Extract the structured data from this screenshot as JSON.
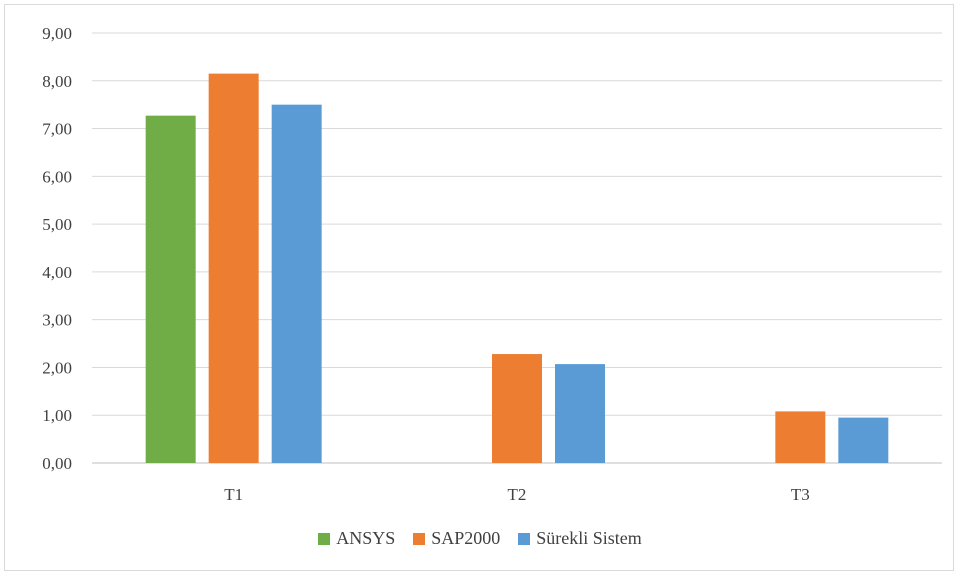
{
  "chart_data": {
    "type": "bar",
    "categories": [
      "T1",
      "T2",
      "T3"
    ],
    "series": [
      {
        "name": "ANSYS",
        "color": "#70ad47",
        "values": [
          7.27,
          null,
          null
        ]
      },
      {
        "name": "SAP2000",
        "color": "#ed7d31",
        "values": [
          8.15,
          2.28,
          1.08
        ]
      },
      {
        "name": "Sürekli Sistem",
        "color": "#5b9bd5",
        "values": [
          7.5,
          2.07,
          0.95
        ]
      }
    ],
    "ylim": [
      0,
      9
    ],
    "yticks": [
      "0,00",
      "1,00",
      "2,00",
      "3,00",
      "4,00",
      "5,00",
      "6,00",
      "7,00",
      "8,00",
      "9,00"
    ],
    "grid": true,
    "legend_position": "bottom"
  }
}
